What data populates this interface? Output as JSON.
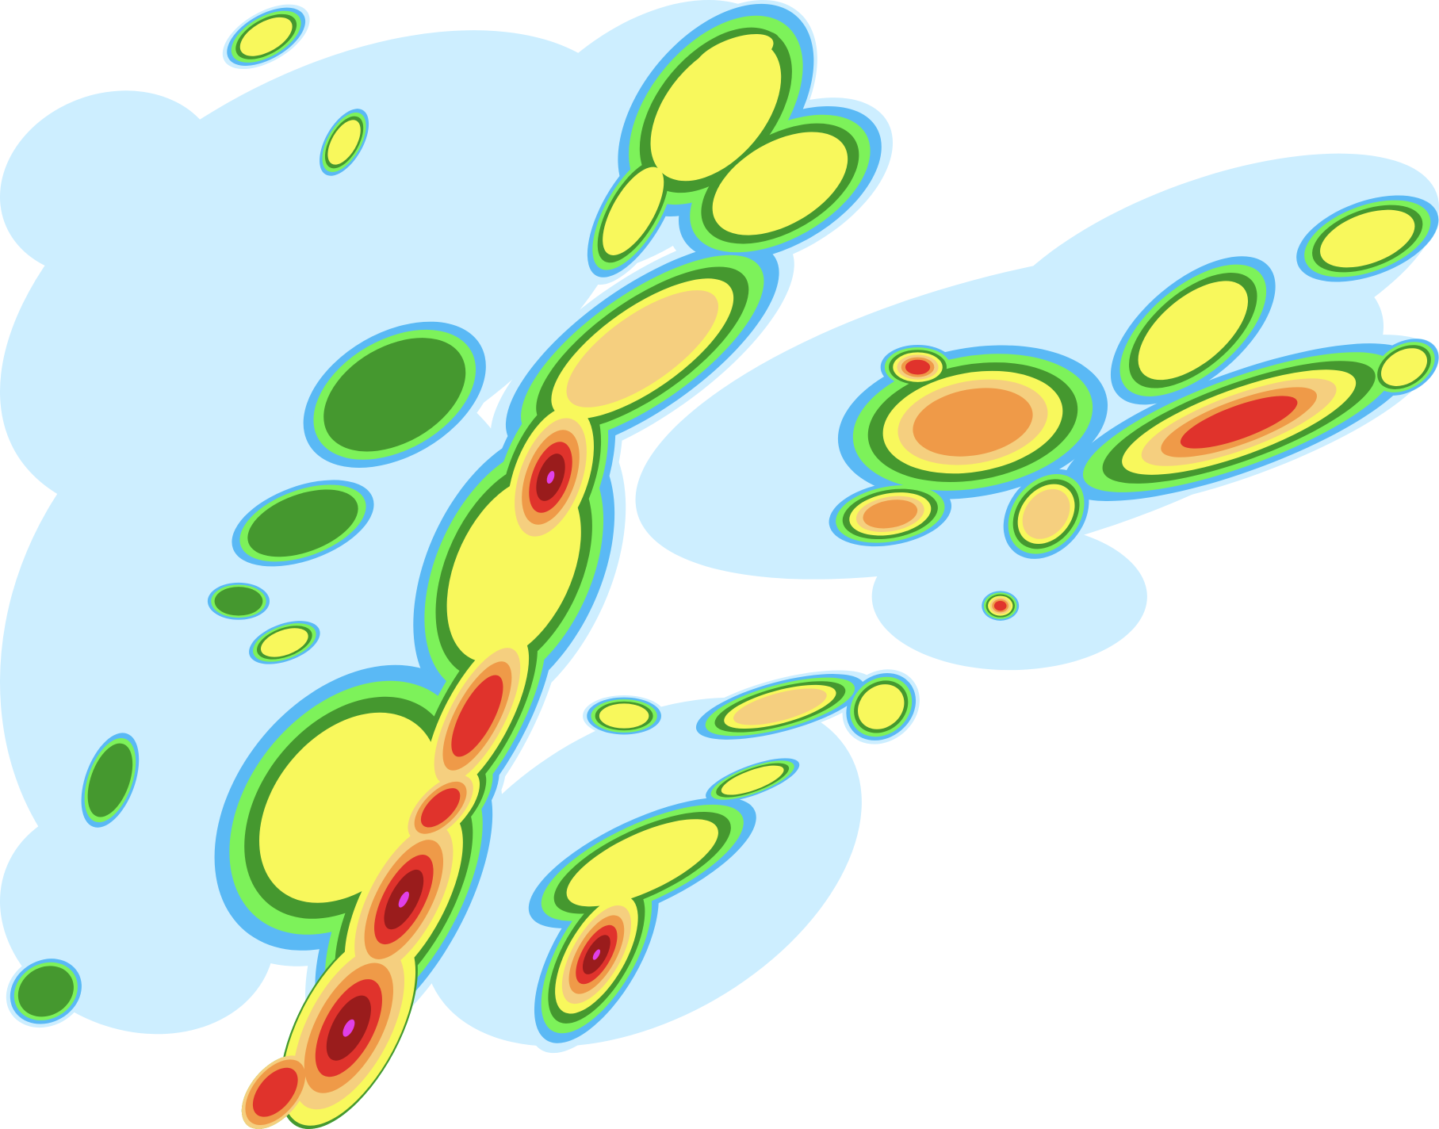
{
  "map": {
    "type": "precipitation-radar",
    "background_color": "#ffffff",
    "intensity_palette": [
      "#cdeeff",
      "#5ab9f5",
      "#7df25a",
      "#45982f",
      "#f8f85c",
      "#f5cf7f",
      "#ef9a48",
      "#e0332c",
      "#9a1c1c",
      "#e040e8"
    ]
  }
}
